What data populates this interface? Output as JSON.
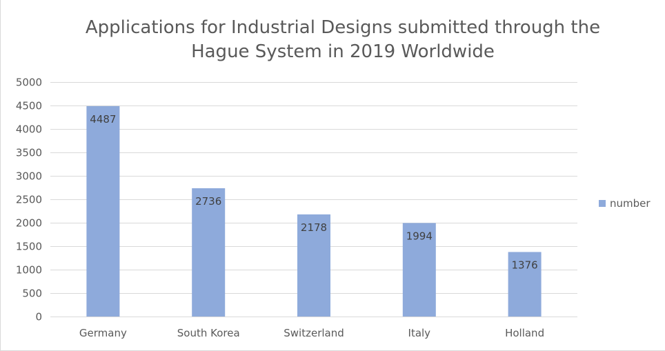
{
  "chart_data": {
    "type": "bar",
    "title_lines": [
      "Applications for Industrial Designs submitted through the",
      "Hague System in 2019 Worldwide"
    ],
    "categories": [
      "Germany",
      "South Korea",
      "Switzerland",
      "Italy",
      "Holland"
    ],
    "series": [
      {
        "name": "number",
        "values": [
          4487,
          2736,
          2178,
          1994,
          1376
        ],
        "color": "#8eaadb"
      }
    ],
    "data_labels": [
      "4487",
      "2736",
      "2178",
      "1994",
      "1376"
    ],
    "ylim": [
      0,
      5000
    ],
    "y_ticks": [
      "0",
      "500",
      "1000",
      "1500",
      "2000",
      "2500",
      "3000",
      "3500",
      "4000",
      "4500",
      "5000"
    ],
    "grid": true,
    "legend_position": "right"
  },
  "colors": {
    "bar": "#8eaadb",
    "grid": "#d9d9d9",
    "axis_text": "#595959",
    "title": "#595959"
  }
}
